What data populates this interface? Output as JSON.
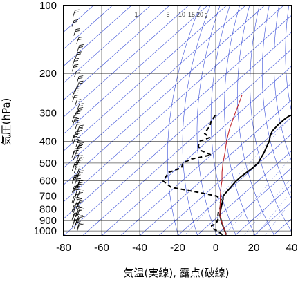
{
  "chart_data": {
    "type": "line",
    "subtype": "skew-T log-P thermodynamic diagram",
    "xlabel": "気温(実線), 露点(破線)",
    "ylabel": "気圧(hPa)",
    "x_ticks": [
      -80,
      -60,
      -40,
      -20,
      0,
      20,
      40
    ],
    "y_ticks": [
      100,
      200,
      300,
      400,
      500,
      600,
      700,
      800,
      900,
      1000
    ],
    "xlim": [
      -80,
      40
    ],
    "ylim": [
      1050,
      100
    ],
    "y_scale": "log",
    "mixing_ratio_labels": [
      "1",
      "5",
      "10",
      "15",
      "20",
      "g"
    ],
    "series": [
      {
        "role": "temperature",
        "style": "solid",
        "color": "#000000",
        "points": [
          [
            1040,
            5
          ],
          [
            1000,
            2
          ],
          [
            975,
            0
          ],
          [
            950,
            -2
          ],
          [
            925,
            -4
          ],
          [
            900,
            -6
          ],
          [
            875,
            -8
          ],
          [
            850,
            -10
          ],
          [
            825,
            -11.5
          ],
          [
            800,
            -13
          ],
          [
            775,
            -14.5
          ],
          [
            750,
            -16
          ],
          [
            725,
            -17.5
          ],
          [
            700,
            -19.5
          ],
          [
            675,
            -20
          ],
          [
            650,
            -20.5
          ],
          [
            625,
            -21
          ],
          [
            600,
            -21.5
          ],
          [
            575,
            -21.5
          ],
          [
            550,
            -21
          ],
          [
            525,
            -20.5
          ],
          [
            500,
            -20.5
          ],
          [
            475,
            -22
          ],
          [
            450,
            -23.5
          ],
          [
            425,
            -25.5
          ],
          [
            400,
            -27.5
          ],
          [
            380,
            -30
          ],
          [
            360,
            -32
          ],
          [
            340,
            -32.5
          ],
          [
            320,
            -32.5
          ],
          [
            310,
            -32
          ],
          [
            300,
            -29.5
          ],
          [
            290,
            -31
          ],
          [
            280,
            -33
          ],
          [
            270,
            -35
          ],
          [
            260,
            -37
          ],
          [
            250,
            -39
          ],
          [
            240,
            -42
          ],
          [
            230,
            -45
          ],
          [
            220,
            -47.5
          ],
          [
            210,
            -51
          ],
          [
            200,
            -53
          ],
          [
            190,
            -55
          ],
          [
            180,
            -57
          ],
          [
            170,
            -58
          ],
          [
            160,
            -60
          ],
          [
            150,
            -61.5
          ],
          [
            140,
            -63
          ],
          [
            130,
            -64.5
          ],
          [
            120,
            -66
          ],
          [
            110,
            -67.5
          ],
          [
            100,
            -69
          ]
        ]
      },
      {
        "role": "dewpoint",
        "style": "dashed",
        "color": "#000000",
        "points": [
          [
            1040,
            3
          ],
          [
            1000,
            -2
          ],
          [
            975,
            -6
          ],
          [
            950,
            -8
          ],
          [
            925,
            -7
          ],
          [
            900,
            -8
          ],
          [
            875,
            -9
          ],
          [
            850,
            -11
          ],
          [
            825,
            -12.5
          ],
          [
            800,
            -13.5
          ],
          [
            775,
            -15
          ],
          [
            750,
            -17
          ],
          [
            725,
            -18.5
          ],
          [
            700,
            -23
          ],
          [
            680,
            -32
          ],
          [
            660,
            -42
          ],
          [
            640,
            -52
          ],
          [
            620,
            -56
          ],
          [
            600,
            -60
          ],
          [
            575,
            -61
          ],
          [
            550,
            -62
          ],
          [
            525,
            -58
          ],
          [
            500,
            -60
          ],
          [
            480,
            -58
          ],
          [
            460,
            -50
          ],
          [
            440,
            -58
          ],
          [
            420,
            -62
          ],
          [
            400,
            -64
          ],
          [
            385,
            -61
          ],
          [
            370,
            -66
          ],
          [
            355,
            -67
          ],
          [
            340,
            -68
          ],
          [
            325,
            -70
          ],
          [
            310,
            -71
          ],
          [
            300,
            -72
          ]
        ]
      },
      {
        "role": "reference-profile",
        "style": "solid",
        "color": "#c1272d",
        "points": [
          [
            1040,
            5
          ],
          [
            1000,
            2
          ],
          [
            900,
            -6
          ],
          [
            850,
            -10
          ],
          [
            800,
            -13.5
          ],
          [
            750,
            -17
          ],
          [
            700,
            -21
          ],
          [
            650,
            -25
          ],
          [
            600,
            -29
          ],
          [
            550,
            -34
          ],
          [
            500,
            -39
          ],
          [
            450,
            -44
          ],
          [
            400,
            -50
          ],
          [
            350,
            -56
          ],
          [
            300,
            -62
          ],
          [
            270,
            -66
          ],
          [
            250,
            -69
          ]
        ]
      }
    ],
    "wind_barbs": {
      "location": "left",
      "direction_shown": "barbs along left side, from surface to 100 hPa"
    }
  }
}
